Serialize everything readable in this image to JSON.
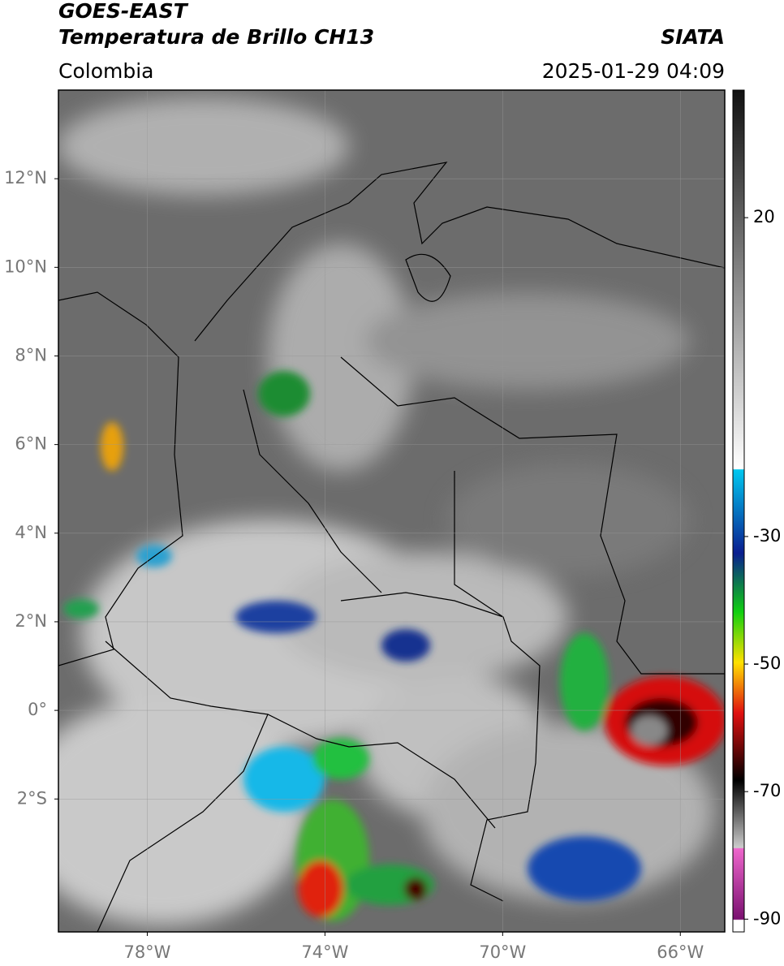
{
  "header": {
    "satellite": "GOES-EAST",
    "product": "Temperatura de Brillo CH13",
    "source": "SIATA",
    "region": "Colombia",
    "datetime": "2025-01-29 04:09"
  },
  "map": {
    "xlim": [
      -80,
      -65
    ],
    "ylim": [
      -5,
      14
    ],
    "xticks": [
      {
        "value": -78,
        "label": "78°W"
      },
      {
        "value": -74,
        "label": "74°W"
      },
      {
        "value": -70,
        "label": "70°W"
      },
      {
        "value": -66,
        "label": "66°W"
      }
    ],
    "yticks": [
      {
        "value": 12,
        "label": "12°N"
      },
      {
        "value": 10,
        "label": "10°N"
      },
      {
        "value": 8,
        "label": "8°N"
      },
      {
        "value": 6,
        "label": "6°N"
      },
      {
        "value": 4,
        "label": "4°N"
      },
      {
        "value": 2,
        "label": "2°N"
      },
      {
        "value": 0,
        "label": "0°"
      },
      {
        "value": -2,
        "label": "2°S"
      }
    ],
    "grid": true
  },
  "colorbar": {
    "clim": [
      -92,
      40
    ],
    "ticks": [
      20,
      -30,
      -50,
      -70,
      -90
    ]
  }
}
